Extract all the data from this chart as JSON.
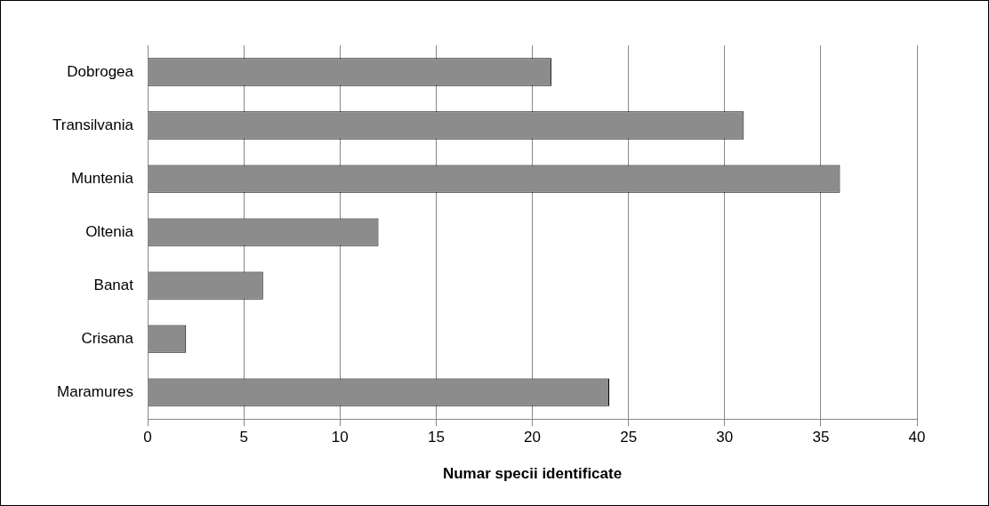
{
  "chart_data": {
    "type": "bar",
    "orientation": "horizontal",
    "xlabel": "Numar specii identificate",
    "categories": [
      "Dobrogea",
      "Transilvania",
      "Muntenia",
      "Oltenia",
      "Banat",
      "Crisana",
      "Maramures"
    ],
    "values": [
      21,
      31,
      36,
      12,
      6,
      2,
      24
    ],
    "color": "#8c8c8c",
    "xlim": [
      0,
      40
    ],
    "xticks": [
      0,
      5,
      10,
      15,
      20,
      25,
      30,
      35,
      40
    ],
    "grid": "x",
    "legend": false
  }
}
